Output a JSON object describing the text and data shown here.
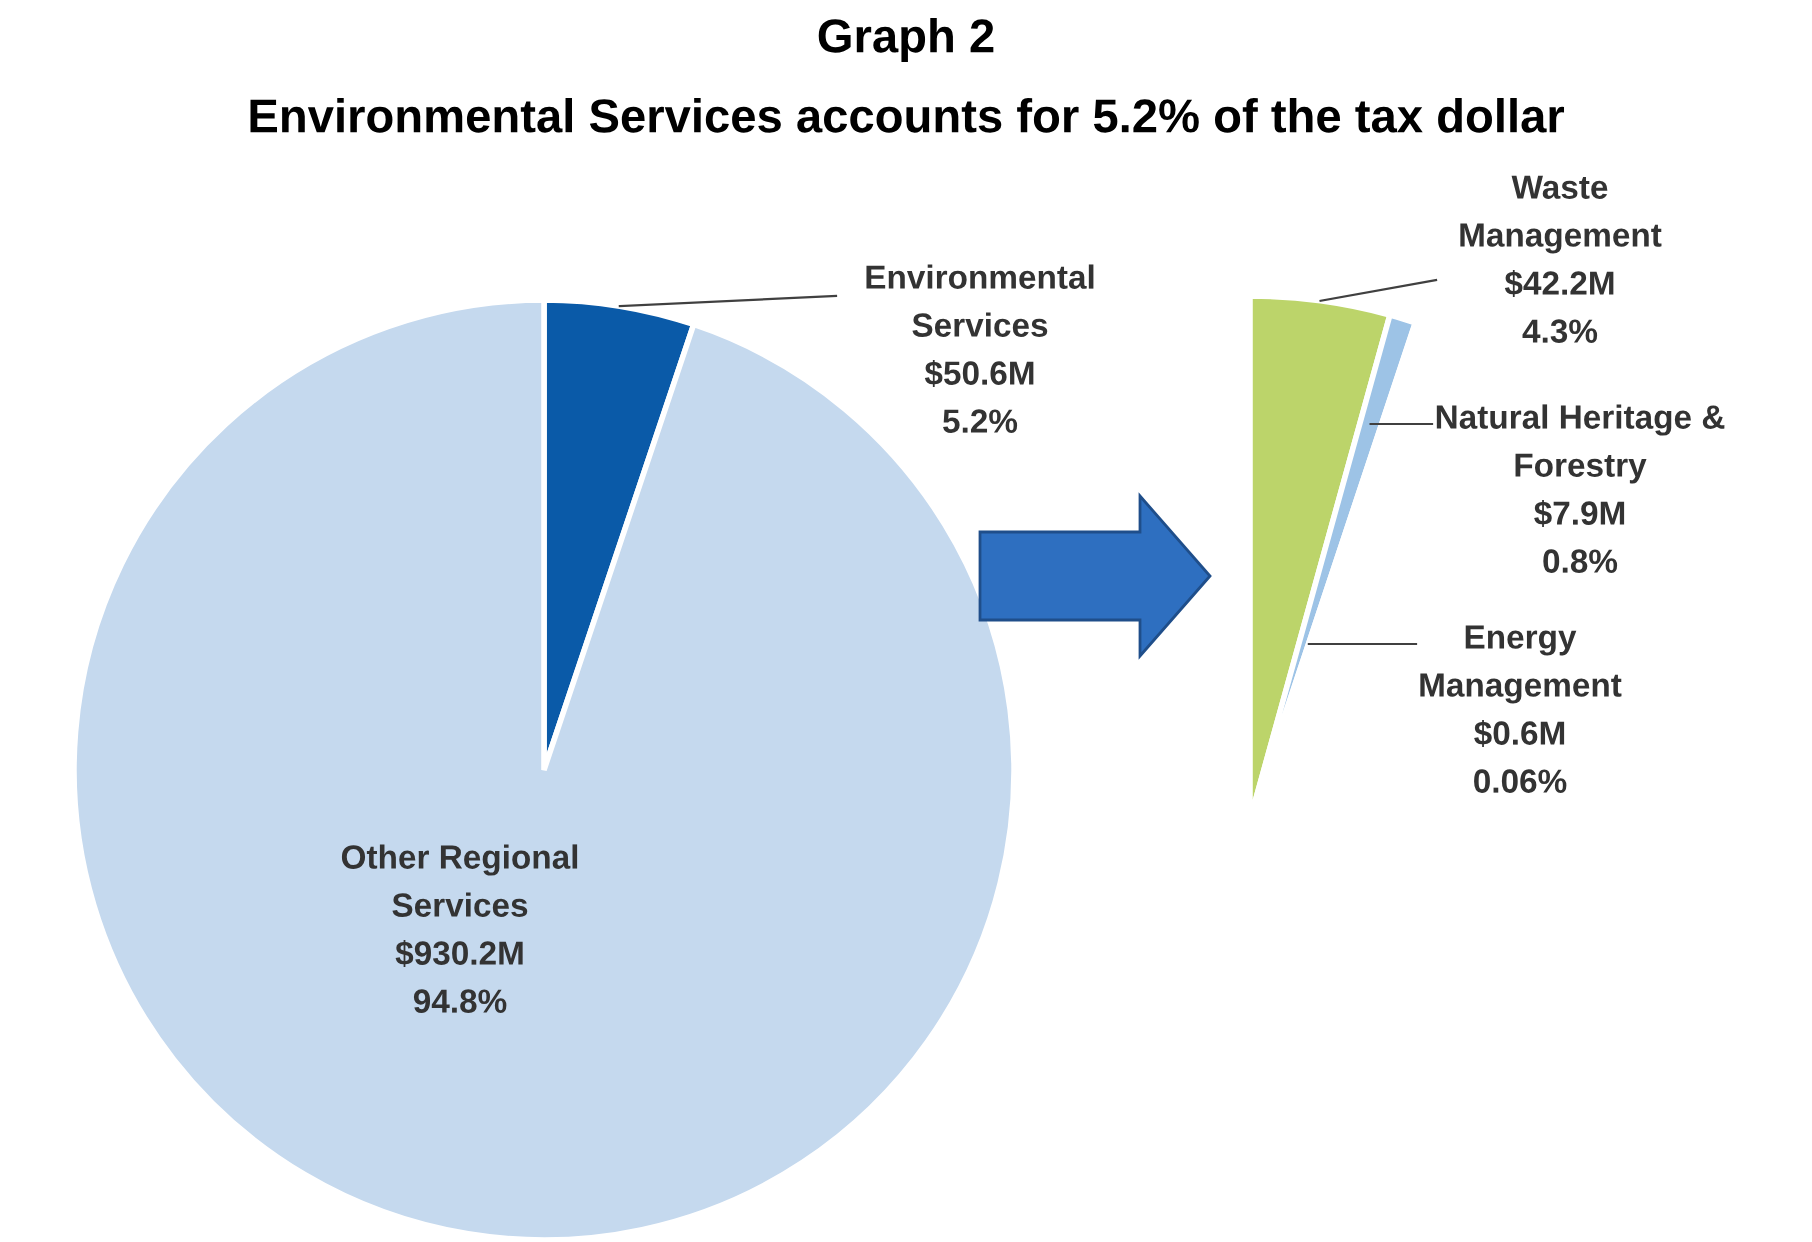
{
  "chart_data": [
    {
      "type": "pie",
      "title": "Graph 2",
      "subtitle": "Environmental Services accounts for 5.2% of the tax dollar",
      "categories": [
        "Environmental Services",
        "Other Regional Services"
      ],
      "values": [
        50.6,
        930.2
      ],
      "colors": [
        "#0a5aa8",
        "#c5d9ee"
      ],
      "value_labels": [
        "$50.6M",
        "$930.2M"
      ],
      "annotations": [
        {
          "text": "5.2%",
          "x": "Environmental Services"
        },
        {
          "text": "94.8%",
          "x": "Other Regional Services"
        }
      ]
    },
    {
      "type": "pie",
      "categories": [
        "Waste Management",
        "Natural Heritage & Forestry",
        "Energy Management"
      ],
      "values": [
        42.2,
        7.9,
        0.6
      ],
      "colors": [
        "#bcd46a",
        "#9dc3e6",
        "#8fb84a"
      ],
      "value_labels": [
        "$42.2M",
        "$7.9M",
        "$0.6M"
      ],
      "annotations": [
        {
          "text": "4.3%",
          "x": "Waste Management"
        },
        {
          "text": "0.8%",
          "x": "Natural Heritage & Forestry"
        },
        {
          "text": "0.06%",
          "x": "Energy Management"
        }
      ]
    }
  ]
}
